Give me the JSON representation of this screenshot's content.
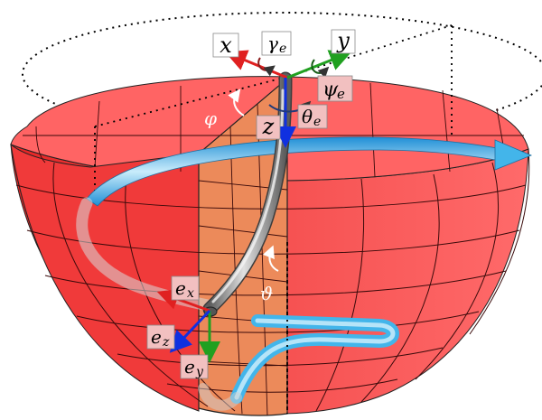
{
  "labels": {
    "x": "x",
    "y": "y",
    "z": "z",
    "gamma": "γ",
    "gamma_sub": "e",
    "psi": "ψ",
    "psi_sub": "e",
    "theta": "θ",
    "theta_sub": "e",
    "phi": "φ",
    "vartheta": "ϑ",
    "ex": "e",
    "ex_sub": "x",
    "ey": "e",
    "ey_sub": "y",
    "ez": "e",
    "ez_sub": "z"
  },
  "colors": {
    "bowl_outer": "#f05050",
    "bowl_inner": "#ff6b6b",
    "bowl_dark": "#e52b2b",
    "slice": "#ec8a5a",
    "grid": "#3a0a0a",
    "axis_x": "#e02020",
    "axis_y": "#20a020",
    "axis_z": "#1030e0",
    "flow_arrow": "#43b5ea",
    "tube": "#8c8c8c"
  }
}
